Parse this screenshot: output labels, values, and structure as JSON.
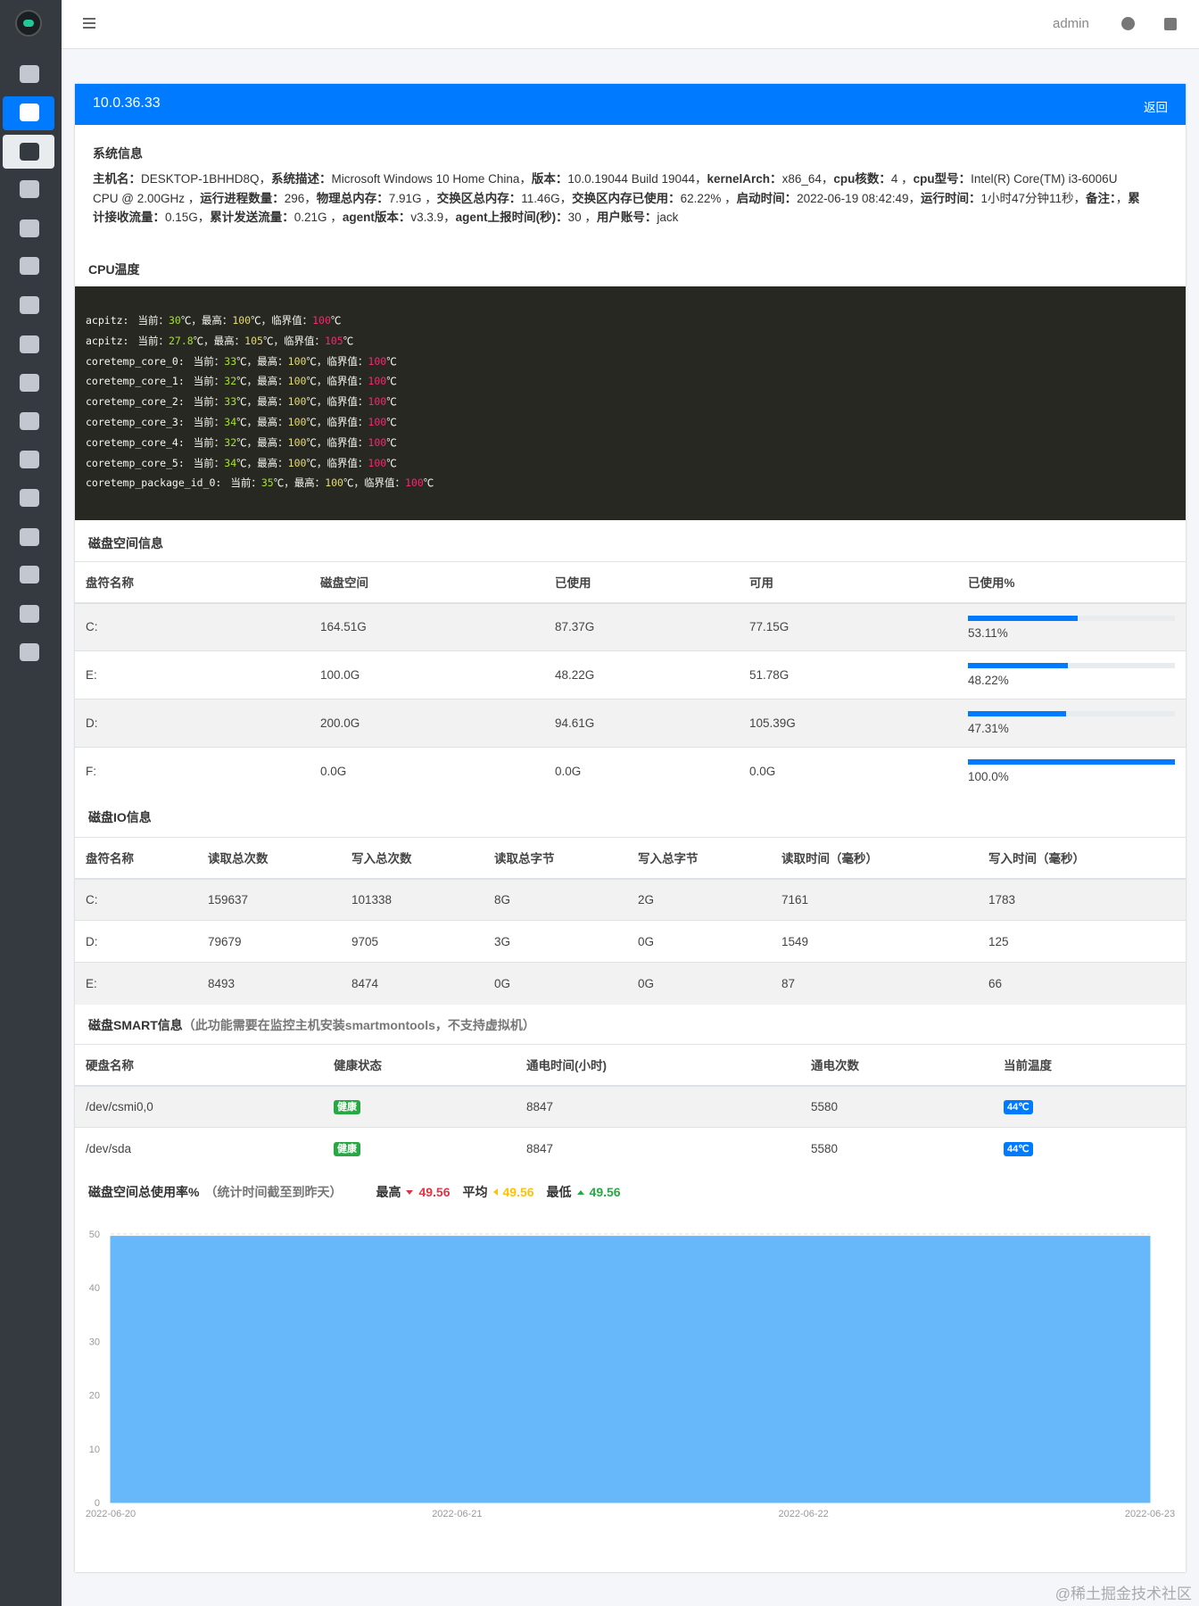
{
  "topbar": {
    "user": "admin"
  },
  "card": {
    "title": "10.0.36.33",
    "back": "返回"
  },
  "system_info": {
    "heading": "系统信息",
    "items": [
      [
        "主机名：",
        "DESKTOP-1BHHD8Q，"
      ],
      [
        "系统描述：",
        "Microsoft Windows 10 Home China，"
      ],
      [
        "版本：",
        "10.0.19044 Build 19044，"
      ],
      [
        "kernelArch：",
        "x86_64，"
      ],
      [
        "cpu核数：",
        "4 ，"
      ],
      [
        "cpu型号：",
        "Intel(R) Core(TM) i3-6006U CPU @ 2.00GHz ，"
      ],
      [
        "运行进程数量：",
        "296，"
      ],
      [
        "物理总内存：",
        "7.91G ，"
      ],
      [
        "交换区总内存：",
        "11.46G，"
      ],
      [
        "交换区内存已使用：",
        "62.22% ，"
      ],
      [
        "启动时间：",
        "2022-06-19 08:42:49，"
      ],
      [
        "运行时间：",
        "1小时47分钟11秒，"
      ],
      [
        "备注：",
        "，"
      ],
      [
        "累计接收流量：",
        "0.15G，"
      ],
      [
        "累计发送流量：",
        "0.21G ，"
      ],
      [
        "agent版本：",
        "v3.3.9，"
      ],
      [
        "agent上报时间(秒)：",
        "30 ，"
      ],
      [
        "用户账号：",
        "jack"
      ]
    ]
  },
  "cpu_temp": {
    "heading": "CPU温度",
    "labels": {
      "current": "当前：",
      "high": "最高：",
      "critical": "临界值：",
      "unit": "℃",
      "sep": "，"
    },
    "sensors": [
      {
        "name": "acpitz:",
        "current": "30",
        "high": "100",
        "critical": "100"
      },
      {
        "name": "acpitz:",
        "current": "27.8",
        "high": "105",
        "critical": "105"
      },
      {
        "name": "coretemp_core_0:",
        "current": "33",
        "high": "100",
        "critical": "100"
      },
      {
        "name": "coretemp_core_1:",
        "current": "32",
        "high": "100",
        "critical": "100"
      },
      {
        "name": "coretemp_core_2:",
        "current": "33",
        "high": "100",
        "critical": "100"
      },
      {
        "name": "coretemp_core_3:",
        "current": "34",
        "high": "100",
        "critical": "100"
      },
      {
        "name": "coretemp_core_4:",
        "current": "32",
        "high": "100",
        "critical": "100"
      },
      {
        "name": "coretemp_core_5:",
        "current": "34",
        "high": "100",
        "critical": "100"
      },
      {
        "name": "coretemp_package_id_0:",
        "current": "35",
        "high": "100",
        "critical": "100"
      }
    ]
  },
  "disk_space": {
    "heading": "磁盘空间信息",
    "columns": [
      "盘符名称",
      "磁盘空间",
      "已使用",
      "可用",
      "已使用%"
    ],
    "rows": [
      [
        "C:",
        "164.51G",
        "87.37G",
        "77.15G",
        {
          "value": 53.11,
          "label": "53.11%"
        }
      ],
      [
        "E:",
        "100.0G",
        "48.22G",
        "51.78G",
        {
          "value": 48.22,
          "label": "48.22%"
        }
      ],
      [
        "D:",
        "200.0G",
        "94.61G",
        "105.39G",
        {
          "value": 47.31,
          "label": "47.31%"
        }
      ],
      [
        "F:",
        "0.0G",
        "0.0G",
        "0.0G",
        {
          "value": 100,
          "label": "100.0%"
        }
      ]
    ]
  },
  "disk_io": {
    "heading": "磁盘IO信息",
    "columns": [
      "盘符名称",
      "读取总次数",
      "写入总次数",
      "读取总字节",
      "写入总字节",
      "读取时间（毫秒）",
      "写入时间（毫秒）"
    ],
    "rows": [
      [
        "C:",
        "159637",
        "101338",
        "8G",
        "2G",
        "7161",
        "1783"
      ],
      [
        "D:",
        "79679",
        "9705",
        "3G",
        "0G",
        "1549",
        "125"
      ],
      [
        "E:",
        "8493",
        "8474",
        "0G",
        "0G",
        "87",
        "66"
      ]
    ]
  },
  "smart": {
    "heading": "磁盘SMART信息",
    "note": "（此功能需要在监控主机安装smartmontools，不支持虚拟机）",
    "columns": [
      "硬盘名称",
      "健康状态",
      "通电时间(小时)",
      "通电次数",
      "当前温度"
    ],
    "rows": [
      [
        "/dev/csmi0,0",
        {
          "text": "健康",
          "color": "#28a745"
        },
        "8847",
        "5580",
        {
          "text": "44℃",
          "color": "#007bff"
        }
      ],
      [
        "/dev/sda",
        {
          "text": "健康",
          "color": "#28a745"
        },
        "8847",
        "5580",
        {
          "text": "44℃",
          "color": "#007bff"
        }
      ]
    ]
  },
  "chart_data": {
    "type": "area",
    "title": "磁盘空间总使用率%",
    "subtitle": "（统计时间截至到昨天）",
    "stats": [
      {
        "label": "最高",
        "value": 49.56,
        "color": "#dc3545"
      },
      {
        "label": "平均",
        "value": 49.56,
        "color": "#ffc107"
      },
      {
        "label": "最低",
        "value": 49.56,
        "color": "#28a745"
      }
    ],
    "x": [
      "2022-06-20",
      "2022-06-21",
      "2022-06-22",
      "2022-06-23"
    ],
    "values": [
      49.56,
      49.56,
      49.56,
      49.56
    ],
    "color": "#66b8fb",
    "ylim": [
      0,
      50
    ],
    "yticks": [
      0,
      10,
      20,
      30,
      40,
      50
    ],
    "grid": true
  },
  "watermark": "@稀土掘金技术社区"
}
